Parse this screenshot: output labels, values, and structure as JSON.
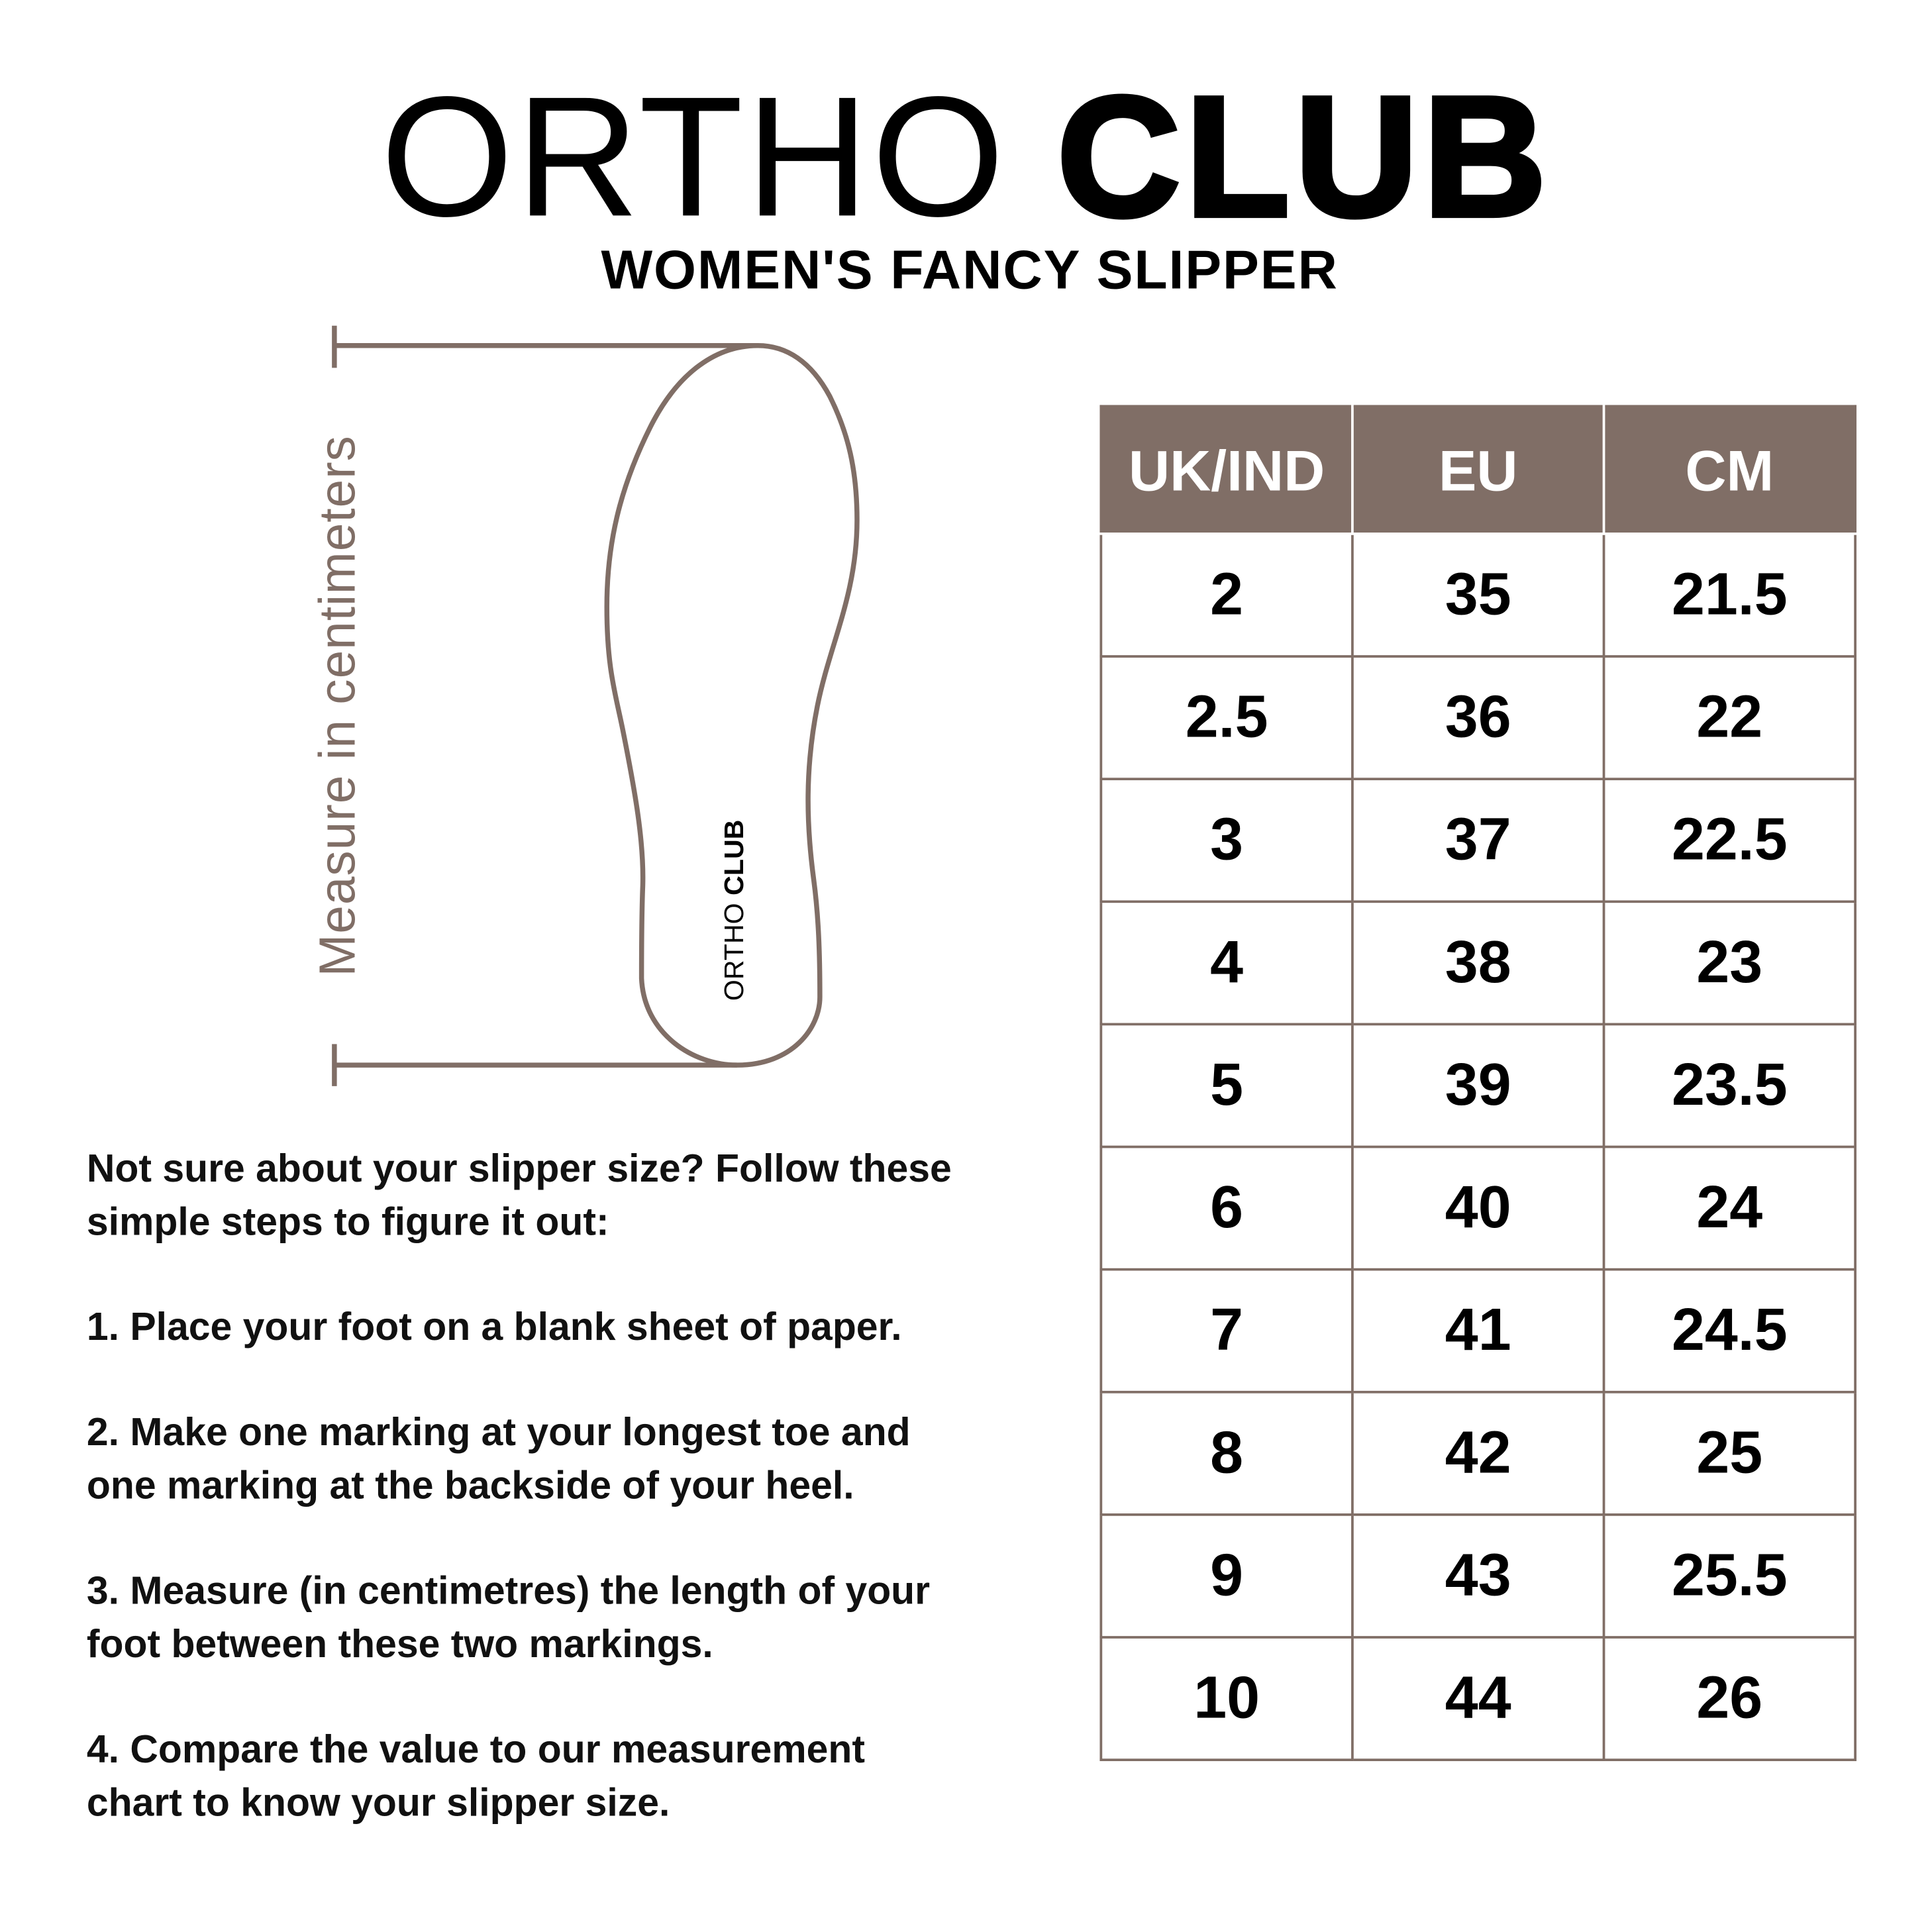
{
  "brand": {
    "word1": "ORTHO",
    "word2": "CLUB"
  },
  "subtitle": "WOMEN'S FANCY SLIPPER",
  "diagram": {
    "axis_label": "Measure in centimeters",
    "sole_logo_word1": "ORTHO",
    "sole_logo_word2": "CLUB",
    "accent_color": "#806e66"
  },
  "size_table": {
    "headers": [
      "UK/IND",
      "EU",
      "CM"
    ],
    "rows": [
      [
        "2",
        "35",
        "21.5"
      ],
      [
        "2.5",
        "36",
        "22"
      ],
      [
        "3",
        "37",
        "22.5"
      ],
      [
        "4",
        "38",
        "23"
      ],
      [
        "5",
        "39",
        "23.5"
      ],
      [
        "6",
        "40",
        "24"
      ],
      [
        "7",
        "41",
        "24.5"
      ],
      [
        "8",
        "42",
        "25"
      ],
      [
        "9",
        "43",
        "25.5"
      ],
      [
        "10",
        "44",
        "26"
      ]
    ]
  },
  "instructions": {
    "intro": [
      "Not sure about your slipper size? Follow these",
      "simple steps to figure it out:"
    ],
    "steps": [
      [
        "1. Place your foot on a blank sheet of paper."
      ],
      [
        "2. Make one marking at your longest toe and",
        "one marking at the backside of your heel."
      ],
      [
        "3. Measure (in centimetres) the length of your",
        "foot between these two markings."
      ],
      [
        "4. Compare the value to our measurement",
        "chart to know your slipper size."
      ]
    ]
  }
}
